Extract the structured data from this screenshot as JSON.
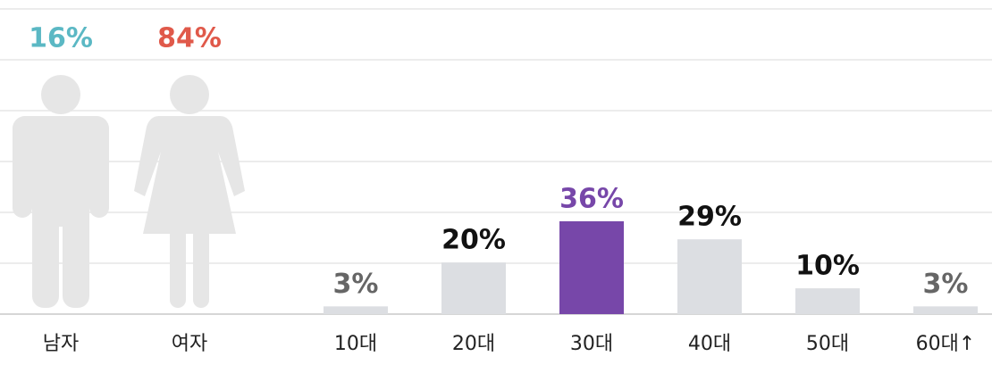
{
  "chart_data": [
    {
      "type": "pictogram",
      "categories": [
        "남자",
        "여자"
      ],
      "values": [
        16,
        84
      ],
      "value_labels": [
        "16%",
        "84%"
      ],
      "colors": [
        "#5bb8c4",
        "#e0594a"
      ],
      "base_color": "#e6e6e6",
      "ylim": [
        0,
        100
      ]
    },
    {
      "type": "bar",
      "categories": [
        "10대",
        "20대",
        "30대",
        "40대",
        "50대",
        "60대↑"
      ],
      "values": [
        3,
        20,
        36,
        29,
        10,
        3
      ],
      "value_labels": [
        "3%",
        "20%",
        "36%",
        "29%",
        "10%",
        "3%"
      ],
      "colors": [
        "#dcdee2",
        "#dcdee2",
        "#7747a9",
        "#dcdee2",
        "#dcdee2",
        "#dcdee2"
      ],
      "label_colors": [
        "#666666",
        "#111111",
        "#7747a9",
        "#111111",
        "#111111",
        "#666666"
      ],
      "ylim": [
        0,
        100
      ]
    }
  ]
}
